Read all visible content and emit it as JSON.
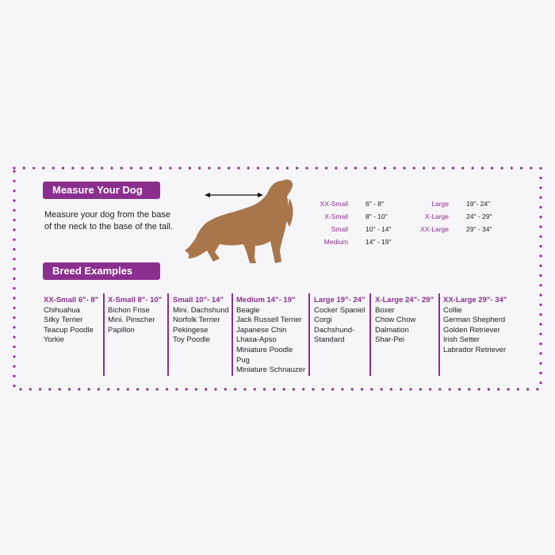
{
  "colors": {
    "accent": "#8b2f8f",
    "dog": "#a8764a",
    "background": "#f6f6f8"
  },
  "measure": {
    "title": "Measure Your Dog",
    "instructions_line1": "Measure your dog from the base",
    "instructions_line2": "of the neck to the base of the tail."
  },
  "size_chart": [
    {
      "size": "XX-Small",
      "range": "6\" - 8\""
    },
    {
      "size": "X-Small",
      "range": "8\" - 10\""
    },
    {
      "size": "Small",
      "range": "10\" - 14\""
    },
    {
      "size": "Medium",
      "range": "14\" - 19\""
    },
    {
      "size": "Large",
      "range": "19\"- 24\""
    },
    {
      "size": "X-Large",
      "range": "24\" - 29\""
    },
    {
      "size": "XX-Large",
      "range": "29\" - 34\""
    }
  ],
  "breeds": {
    "title": "Breed Examples",
    "columns": [
      {
        "header": "XX-Small 6\"- 8\"",
        "items": [
          "Chihuahua",
          "Silky Terrier",
          "Teacup Poodle",
          "Yorkie"
        ]
      },
      {
        "header": "X-Small 8\"- 10\"",
        "items": [
          "Bichon Frise",
          "Mini. Pinscher",
          "Papillon"
        ]
      },
      {
        "header": "Small 10\"- 14\"",
        "items": [
          "Mini. Dachshund",
          "Norfolk Terrier",
          "Pekingese",
          "Toy Poodle"
        ]
      },
      {
        "header": "Medium 14\"- 19\"",
        "items": [
          "Beagle",
          "Jack Russell Terrier",
          "Japanese Chin",
          "Lhasa-Apso",
          "Miniature Poodle",
          "Pug",
          "Miniature Schnauzer"
        ]
      },
      {
        "header": "Large 19\"- 24\"",
        "items": [
          "Cocker Spaniel",
          "Corgi",
          "Dachshund-",
          "Standard"
        ]
      },
      {
        "header": "X-Large 24\"- 29\"",
        "items": [
          "Boxer",
          "Chow Chow",
          "Dalmation",
          "Shar-Pei"
        ]
      },
      {
        "header": "XX-Large 29\"- 34\"",
        "items": [
          "Collie",
          "German Shepherd",
          "Golden Retriever",
          "Irish Setter",
          "Labrador Retriever"
        ]
      }
    ]
  }
}
